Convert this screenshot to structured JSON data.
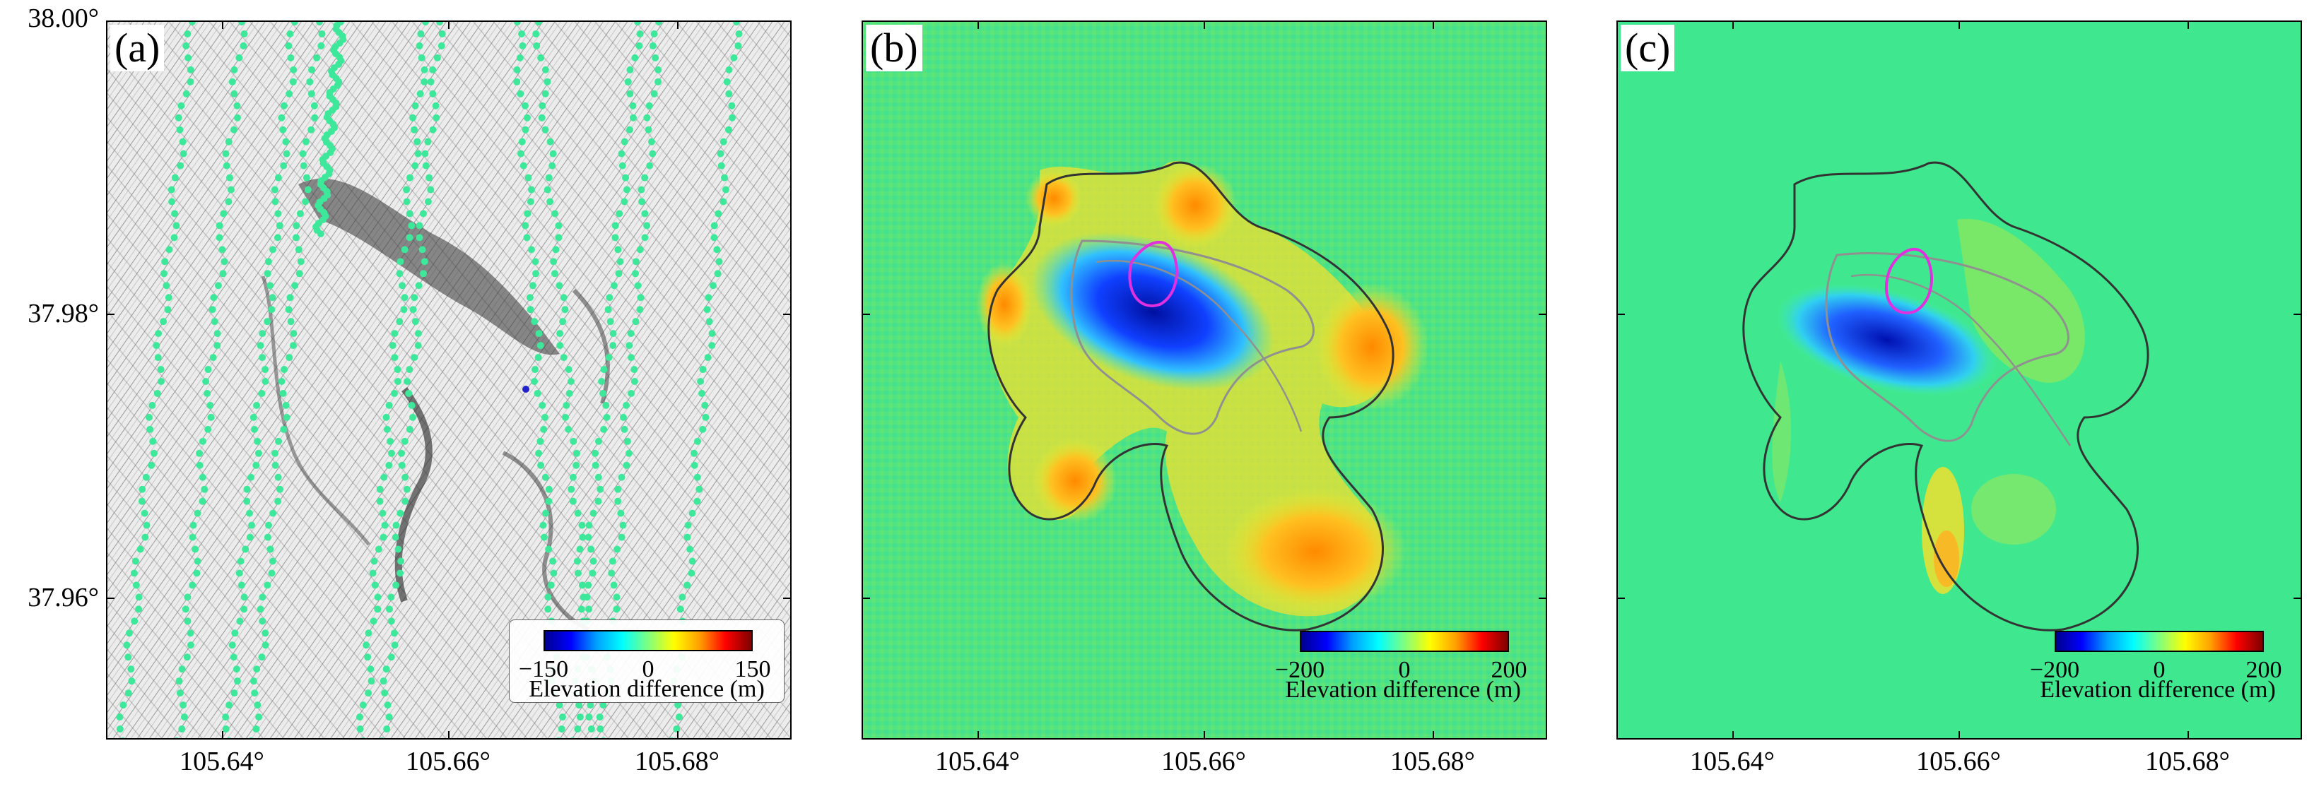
{
  "panels": [
    {
      "label": "(a)",
      "legend_ticks": [
        "−150",
        "0",
        "150"
      ],
      "legend_title": "Elevation difference (m)"
    },
    {
      "label": "(b)",
      "legend_ticks": [
        "−200",
        "0",
        "200"
      ],
      "legend_title": "Elevation difference (m)"
    },
    {
      "label": "(c)",
      "legend_ticks": [
        "−200",
        "0",
        "200"
      ],
      "legend_title": "Elevation difference (m)"
    }
  ],
  "y_ticks": [
    "38.00°",
    "37.98°",
    "37.96°"
  ],
  "x_ticks": [
    "105.64°",
    "105.66°",
    "105.68°"
  ],
  "colors": {
    "track_points": "#3ee89a",
    "outer_outline": "#333333",
    "inner_outline": "#909090",
    "magenta_outline": "#e030e0",
    "background_b": "#4fe382",
    "background_c": "#3fe88e"
  },
  "map": {
    "lon_range": [
      105.63,
      105.69
    ],
    "lat_range": [
      37.95,
      38.0
    ],
    "colorbar_a": [
      -150,
      150
    ],
    "colorbar_bc": [
      -200,
      200
    ]
  }
}
